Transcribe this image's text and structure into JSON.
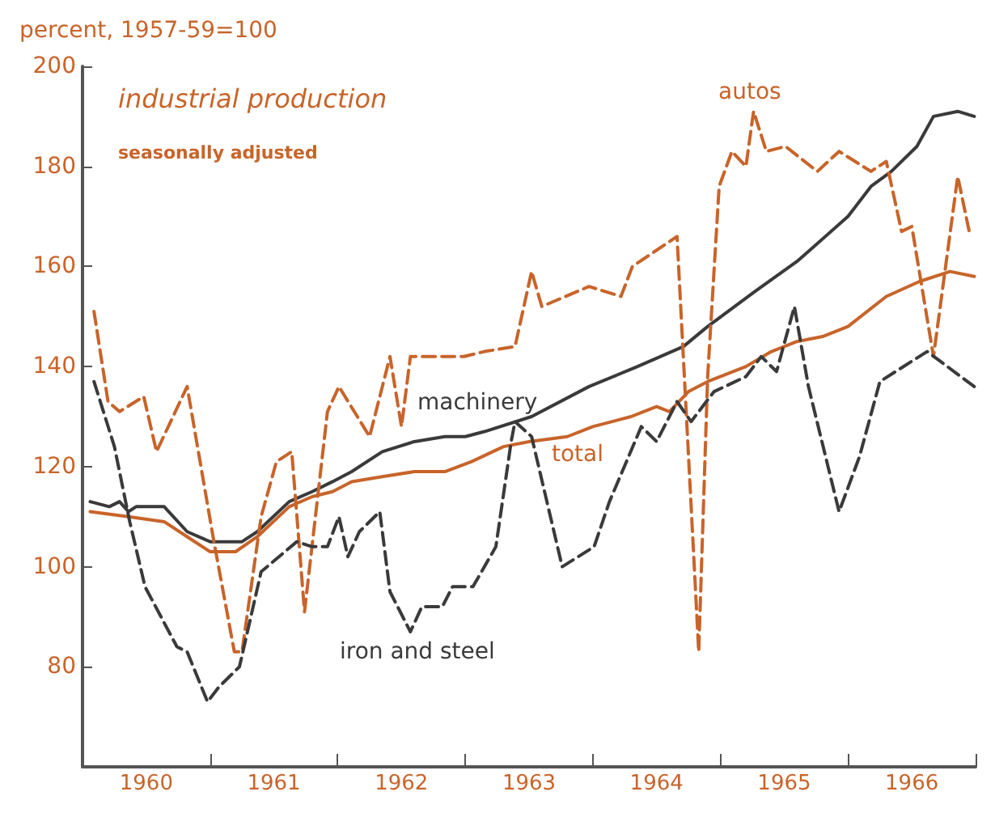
{
  "chart_data": {
    "type": "line",
    "title": "industrial production",
    "subtitle": "seasonally adjusted",
    "ylabel": "percent, 1957-59=100",
    "xlim": [
      1960,
      1967
    ],
    "xticks": [
      {
        "value": 1960,
        "label": null
      },
      {
        "value": 1960.5,
        "label": "1960"
      },
      {
        "value": 1961,
        "label": null
      },
      {
        "value": 1961.5,
        "label": "1961"
      },
      {
        "value": 1962,
        "label": null
      },
      {
        "value": 1962.5,
        "label": "1962"
      },
      {
        "value": 1963,
        "label": null
      },
      {
        "value": 1963.5,
        "label": "1963"
      },
      {
        "value": 1964,
        "label": null
      },
      {
        "value": 1964.5,
        "label": "1964"
      },
      {
        "value": 1965,
        "label": null
      },
      {
        "value": 1965.5,
        "label": "1965"
      },
      {
        "value": 1966,
        "label": null
      },
      {
        "value": 1966.5,
        "label": "1966"
      },
      {
        "value": 1967,
        "label": null
      }
    ],
    "ylim": [
      60,
      200
    ],
    "yticks": [
      80,
      100,
      120,
      140,
      160,
      180,
      200
    ],
    "grid": false,
    "legend": false,
    "marker": "none",
    "series": [
      {
        "name": "machinery",
        "color": "#3a3a3a",
        "line_style": "solid",
        "x": [
          1960.06,
          1960.21,
          1960.29,
          1960.36,
          1960.42,
          1960.64,
          1960.82,
          1961.0,
          1961.25,
          1961.37,
          1961.62,
          1961.8,
          1961.96,
          1962.11,
          1962.35,
          1962.6,
          1962.84,
          1963.0,
          1963.15,
          1963.52,
          1963.97,
          1964.35,
          1964.71,
          1964.9,
          1965.27,
          1965.6,
          1966.0,
          1966.18,
          1966.34,
          1966.54,
          1966.67,
          1966.86,
          1966.99
        ],
        "values": [
          113,
          112,
          113,
          111,
          112,
          112,
          107,
          105,
          105,
          107,
          113,
          115,
          117,
          119,
          123,
          125,
          126,
          126,
          127,
          130,
          136,
          140,
          144,
          148,
          155,
          161,
          170,
          176,
          179,
          184,
          190,
          191,
          190
        ]
      },
      {
        "name": "total",
        "color": "#c8642a",
        "line_style": "solid",
        "x": [
          1960.06,
          1960.36,
          1960.64,
          1960.82,
          1961.0,
          1961.2,
          1961.37,
          1961.62,
          1961.8,
          1961.96,
          1962.11,
          1962.35,
          1962.6,
          1962.84,
          1963.05,
          1963.3,
          1963.5,
          1963.8,
          1964.0,
          1964.3,
          1964.5,
          1964.6,
          1964.75,
          1964.9,
          1965.2,
          1965.4,
          1965.6,
          1965.8,
          1966.0,
          1966.3,
          1966.56,
          1966.8,
          1966.99
        ],
        "values": [
          111,
          110,
          109,
          106,
          103,
          103,
          106,
          112,
          114,
          115,
          117,
          118,
          119,
          119,
          121,
          124,
          125,
          126,
          128,
          130,
          132,
          131,
          135,
          137,
          140,
          143,
          145,
          146,
          148,
          154,
          157,
          159,
          158
        ]
      },
      {
        "name": "autos",
        "color": "#c8642a",
        "line_style": "dashed",
        "x": [
          1960.09,
          1960.2,
          1960.29,
          1960.48,
          1960.58,
          1960.82,
          1961.03,
          1961.19,
          1961.25,
          1961.4,
          1961.52,
          1961.64,
          1961.74,
          1961.92,
          1962.01,
          1962.25,
          1962.41,
          1962.5,
          1962.57,
          1962.99,
          1963.15,
          1963.39,
          1963.52,
          1963.6,
          1963.97,
          1964.22,
          1964.31,
          1964.66,
          1964.83,
          1964.9,
          1964.99,
          1965.09,
          1965.2,
          1965.26,
          1965.36,
          1965.51,
          1965.76,
          1965.93,
          1966.18,
          1966.3,
          1966.42,
          1966.5,
          1966.67,
          1966.86,
          1966.95
        ],
        "values": [
          151,
          133,
          131,
          134,
          123,
          136,
          105,
          83,
          83,
          110,
          121,
          123,
          91,
          131,
          136,
          126,
          142,
          128,
          142,
          142,
          143,
          144,
          159,
          152,
          156,
          154,
          160,
          166,
          83,
          138,
          176,
          183,
          180,
          191,
          183,
          184,
          179,
          183,
          179,
          181,
          167,
          168,
          142,
          178,
          167
        ]
      },
      {
        "name": "iron and steel",
        "color": "#3a3a3a",
        "line_style": "dashed",
        "x": [
          1960.09,
          1960.25,
          1960.37,
          1960.49,
          1960.74,
          1960.82,
          1960.98,
          1961.07,
          1961.23,
          1961.4,
          1961.68,
          1961.8,
          1961.92,
          1962.01,
          1962.08,
          1962.17,
          1962.33,
          1962.41,
          1962.57,
          1962.66,
          1962.82,
          1962.9,
          1963.06,
          1963.24,
          1963.36,
          1963.39,
          1963.52,
          1963.76,
          1964.01,
          1964.13,
          1964.38,
          1964.5,
          1964.66,
          1964.77,
          1964.95,
          1965.2,
          1965.32,
          1965.44,
          1965.58,
          1965.69,
          1965.93,
          1966.09,
          1966.25,
          1966.62,
          1966.99
        ],
        "values": [
          137,
          124,
          109,
          96,
          84,
          83,
          73,
          76,
          80,
          99,
          105,
          104,
          104,
          110,
          102,
          107,
          111,
          95,
          87,
          92,
          92,
          96,
          96,
          104,
          125,
          129,
          126,
          100,
          104,
          113,
          128,
          125,
          133,
          129,
          135,
          138,
          142,
          139,
          152,
          136,
          111,
          122,
          137,
          143,
          136
        ]
      }
    ]
  }
}
